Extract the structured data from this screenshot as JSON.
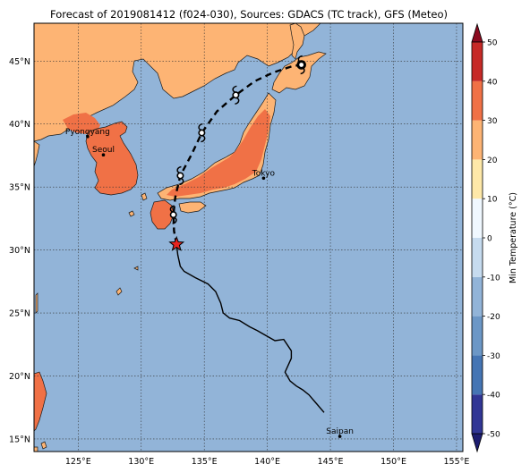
{
  "title": "Forecast of 2019081412 (f024-030), Sources: GDACS (TC track), GFS (Meteo)",
  "map": {
    "lon_range": [
      121.5,
      155.5
    ],
    "lat_range": [
      14,
      48
    ],
    "lon_ticks": [
      {
        "value": 125,
        "label": "125°E"
      },
      {
        "value": 130,
        "label": "130°E"
      },
      {
        "value": 135,
        "label": "135°E"
      },
      {
        "value": 140,
        "label": "140°E"
      },
      {
        "value": 145,
        "label": "145°E"
      },
      {
        "value": 150,
        "label": "150°E"
      },
      {
        "value": 155,
        "label": "155°E"
      }
    ],
    "lat_ticks": [
      {
        "value": 15,
        "label": "15°N"
      },
      {
        "value": 20,
        "label": "20°N"
      },
      {
        "value": 25,
        "label": "25°N"
      },
      {
        "value": 30,
        "label": "30°N"
      },
      {
        "value": 35,
        "label": "35°N"
      },
      {
        "value": 40,
        "label": "40°N"
      },
      {
        "value": 45,
        "label": "45°N"
      }
    ],
    "grid": true,
    "colors": {
      "ocean": "#92b4d8",
      "land_warm": "#fdb474",
      "land_hot": "#f07146",
      "coast": "#1a1a1a"
    },
    "cities": [
      {
        "name": "Pyongyang",
        "lon": 125.75,
        "lat": 39.0
      },
      {
        "name": "Seoul",
        "lon": 127.0,
        "lat": 37.55
      },
      {
        "name": "Tokyo",
        "lon": 139.7,
        "lat": 35.7
      },
      {
        "name": "Saipan",
        "lon": 145.75,
        "lat": 15.2
      }
    ],
    "current_position": {
      "lon": 132.8,
      "lat": 30.45
    },
    "observed_track": [
      [
        144.5,
        17.1
      ],
      [
        143.9,
        17.8
      ],
      [
        143.3,
        18.5
      ],
      [
        142.8,
        18.9
      ],
      [
        142.3,
        19.2
      ],
      [
        141.8,
        19.6
      ],
      [
        141.4,
        20.3
      ],
      [
        141.9,
        21.4
      ],
      [
        141.9,
        22.0
      ],
      [
        141.3,
        22.9
      ],
      [
        140.6,
        22.8
      ],
      [
        139.9,
        23.2
      ],
      [
        139.2,
        23.6
      ],
      [
        138.6,
        23.9
      ],
      [
        137.8,
        24.4
      ],
      [
        137.0,
        24.6
      ],
      [
        136.5,
        25.0
      ],
      [
        136.3,
        25.8
      ],
      [
        135.9,
        26.7
      ],
      [
        135.3,
        27.3
      ],
      [
        134.3,
        27.8
      ],
      [
        133.4,
        28.3
      ],
      [
        133.1,
        28.7
      ],
      [
        132.9,
        29.6
      ],
      [
        132.8,
        30.45
      ]
    ],
    "forecast_track": [
      [
        132.8,
        30.45
      ],
      [
        132.6,
        31.5
      ],
      [
        132.55,
        32.8
      ],
      [
        132.7,
        34.2
      ],
      [
        133.1,
        35.9
      ],
      [
        134.0,
        37.6
      ],
      [
        134.8,
        39.3
      ],
      [
        136.0,
        41.0
      ],
      [
        137.5,
        42.3
      ],
      [
        139.0,
        43.4
      ],
      [
        140.5,
        44.1
      ],
      [
        142.0,
        44.6
      ],
      [
        142.7,
        44.7
      ]
    ],
    "forecast_points": [
      {
        "lon": 132.55,
        "lat": 32.8
      },
      {
        "lon": 133.1,
        "lat": 35.9
      },
      {
        "lon": 134.8,
        "lat": 39.3
      },
      {
        "lon": 137.5,
        "lat": 42.3
      },
      {
        "lon": 142.7,
        "lat": 44.7
      }
    ]
  },
  "colorbar": {
    "label": "Min Temperature (°C)",
    "min": -55,
    "max": 55,
    "ticks": [
      "-50",
      "-40",
      "-30",
      "-20",
      "-10",
      "0",
      "10",
      "20",
      "30",
      "40",
      "50"
    ],
    "tick_values": [
      -50,
      -40,
      -30,
      -20,
      -10,
      0,
      10,
      20,
      30,
      40,
      50
    ],
    "bands": [
      {
        "from": -50,
        "to": -40,
        "color": "#313695"
      },
      {
        "from": -40,
        "to": -30,
        "color": "#4575b4"
      },
      {
        "from": -30,
        "to": -20,
        "color": "#6c97c6"
      },
      {
        "from": -20,
        "to": -10,
        "color": "#92b4d8"
      },
      {
        "from": -10,
        "to": 0,
        "color": "#c6dbef"
      },
      {
        "from": 0,
        "to": 10,
        "color": "#f0f8ff"
      },
      {
        "from": 10,
        "to": 20,
        "color": "#fee8a8"
      },
      {
        "from": 20,
        "to": 30,
        "color": "#fdb474"
      },
      {
        "from": 30,
        "to": 40,
        "color": "#f07146"
      },
      {
        "from": 40,
        "to": 50,
        "color": "#c62a27"
      }
    ],
    "extend_low_color": "#1d1d70",
    "extend_high_color": "#8b0a1f"
  }
}
